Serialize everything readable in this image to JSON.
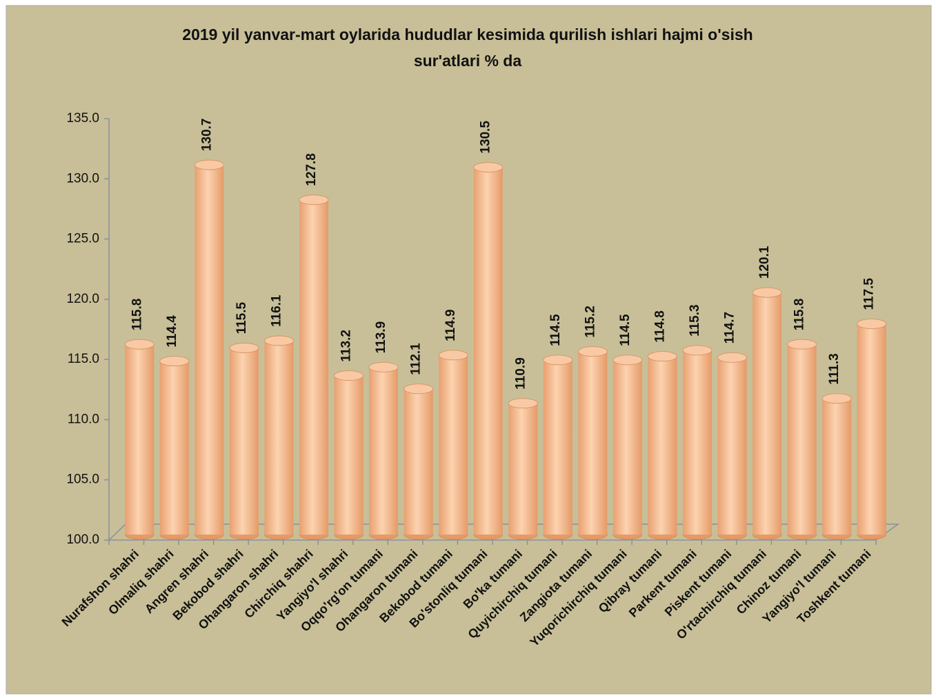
{
  "chart_data": {
    "type": "bar",
    "style": "cylinder",
    "title_lines": [
      "2019 yil yanvar-mart oylarida hududlar kesimida qurilish ishlari hajmi o'sish",
      "sur'atlari       %  da"
    ],
    "categories": [
      "Nurafshon shahri",
      "Olmaliq shahri",
      "Angren shahri",
      "Bekobod shahri",
      "Ohangaron shahri",
      "Chirchiq shahri",
      "Yangiyo'l shahri",
      "Oqqo'rg'on tumani",
      "Ohangaron tumani",
      "Bekobod tumani",
      "Bo'stonliq tumani",
      "Bo'ka tumani",
      "Quyichirchiq tumani",
      "Zangiota tumani",
      "Yuqorichirchiq tumani",
      "Qibray tumani",
      "Parkent tumani",
      "Piskent tumani",
      "O'rtachirchiq tumani",
      "Chinoz tumani",
      "Yangiyo'l tumani",
      "Toshkent tumani"
    ],
    "values": [
      115.8,
      114.4,
      130.7,
      115.5,
      116.1,
      127.8,
      113.2,
      113.9,
      112.1,
      114.9,
      130.5,
      110.9,
      114.5,
      115.2,
      114.5,
      114.8,
      115.3,
      114.7,
      120.1,
      115.8,
      111.3,
      117.5
    ],
    "color": "#f4b183",
    "ylim": [
      100,
      135
    ],
    "yticks": [
      {
        "value": 100,
        "label": "100.0"
      },
      {
        "value": 105,
        "label": "105.0"
      },
      {
        "value": 110,
        "label": "110.0"
      },
      {
        "value": 115,
        "label": "115.0"
      },
      {
        "value": 120,
        "label": "120.0"
      },
      {
        "value": 125,
        "label": "125.0"
      },
      {
        "value": 130,
        "label": "130.0"
      },
      {
        "value": 135,
        "label": "135.0"
      }
    ],
    "grid": false
  }
}
